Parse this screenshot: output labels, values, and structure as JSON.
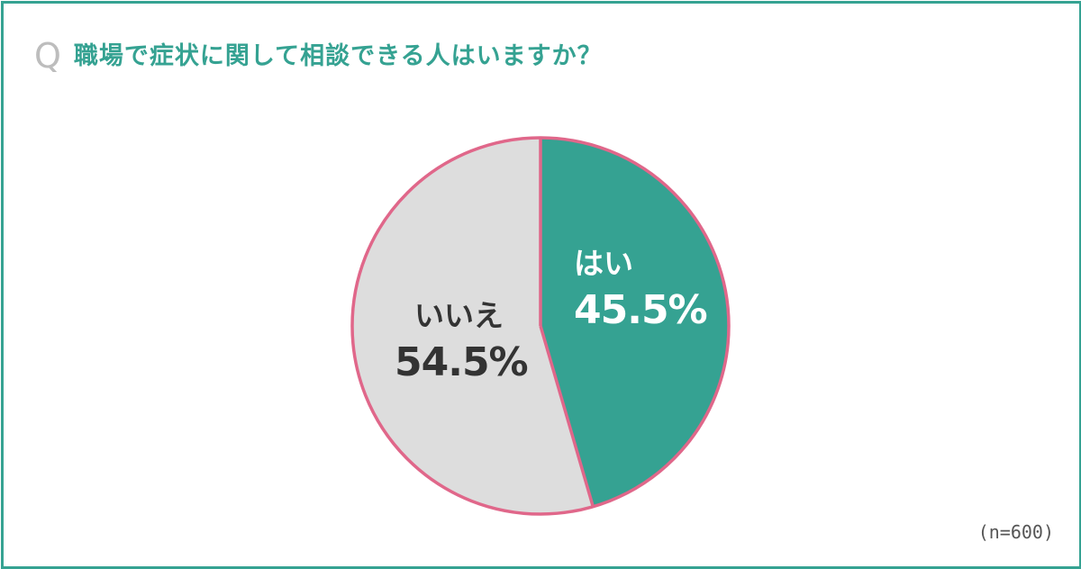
{
  "question": {
    "mark": "Q",
    "text": "職場で症状に関して相談できる人はいますか？"
  },
  "chart_data": {
    "type": "pie",
    "title": "職場で症状に関して相談できる人はいますか？",
    "slices": [
      {
        "label": "はい",
        "value": 45.5,
        "display": "45.5%",
        "color": "#35a292",
        "text_color": "#ffffff"
      },
      {
        "label": "いいえ",
        "value": 54.5,
        "display": "54.5%",
        "color": "#dddddd",
        "text_color": "#333333"
      }
    ],
    "start_angle": "12 o'clock",
    "direction": "clockwise",
    "outline_color": "#e0678a",
    "note": "(n=600)"
  },
  "colors": {
    "accent": "#35a292",
    "pie_outline": "#e0678a",
    "question_mark": "#bdbdbd"
  }
}
